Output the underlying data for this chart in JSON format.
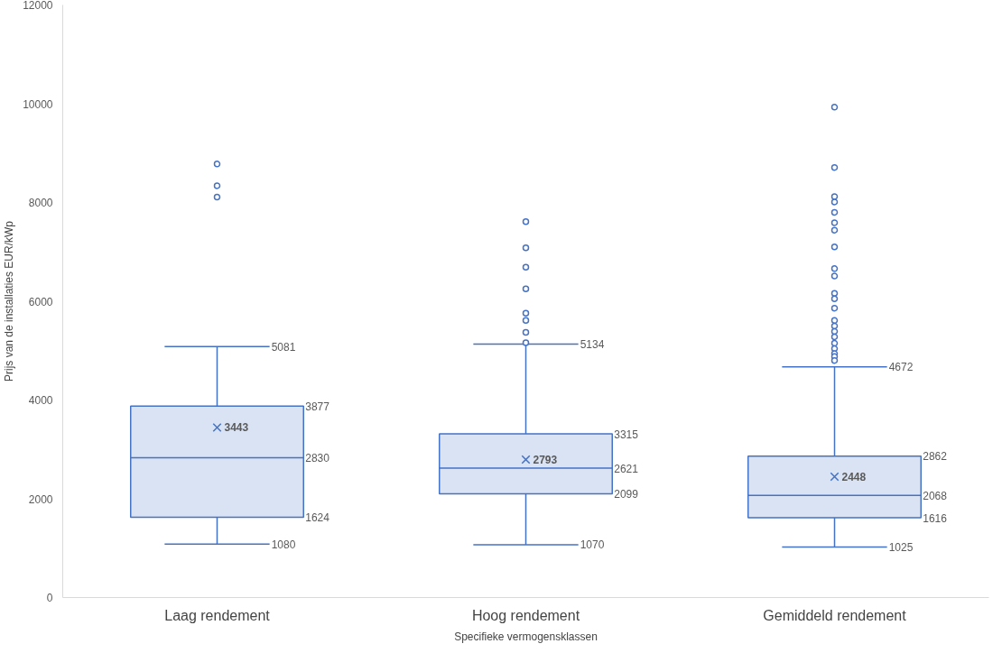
{
  "chart_data": {
    "type": "box",
    "xlabel": "Specifieke vermogensklassen",
    "ylabel": "Prijs van de installaties EUR/kWp",
    "categories": [
      "Laag rendement",
      "Hoog rendement",
      "Gemiddeld rendement"
    ],
    "color": "#4472c4",
    "boxes": [
      {
        "low": 1080,
        "q1": 1624,
        "median": 2830,
        "q3": 3877,
        "high": 5081,
        "mean": 3443,
        "outliers": [
          8780,
          8340,
          8110
        ]
      },
      {
        "low": 1070,
        "q1": 2099,
        "median": 2621,
        "q3": 3315,
        "high": 5134,
        "mean": 2793,
        "outliers": [
          7610,
          7080,
          6690,
          6250,
          5760,
          5610,
          5370,
          5160
        ]
      },
      {
        "low": 1025,
        "q1": 1616,
        "median": 2068,
        "q3": 2862,
        "high": 4672,
        "mean": 2448,
        "outliers": [
          9930,
          8710,
          8120,
          8010,
          7800,
          7590,
          7440,
          7100,
          6660,
          6510,
          6160,
          6050,
          5860,
          5610,
          5500,
          5390,
          5280,
          5150,
          5040,
          4940,
          4880,
          4800
        ]
      }
    ],
    "annotations": [
      "5081",
      "3877",
      "3443",
      "2830",
      "1624",
      "1080",
      "5134",
      "3315",
      "2793",
      "2621",
      "2099",
      "1070",
      "4672",
      "2862",
      "2448",
      "2068",
      "1616",
      "1025"
    ],
    "ylim": [
      0,
      12000
    ],
    "yticks": [
      0,
      2000,
      4000,
      6000,
      8000,
      10000,
      12000
    ],
    "marker": "circle"
  }
}
